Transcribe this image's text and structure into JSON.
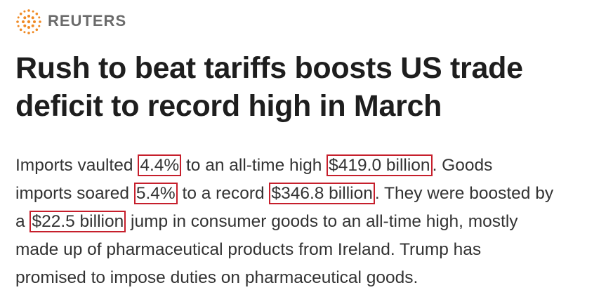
{
  "header": {
    "brand": "REUTERS"
  },
  "headline": [
    "Rush to beat tariffs boosts US trade",
    "deficit to record high in March"
  ],
  "body": {
    "lines": [
      [
        {
          "text": "Imports vaulted "
        },
        {
          "text": "4.4%",
          "highlighted": true
        },
        {
          "text": " to an all-time high "
        },
        {
          "text": "$419.0 billion",
          "highlighted": true
        },
        {
          "text": ". Goods"
        }
      ],
      [
        {
          "text": "imports soared "
        },
        {
          "text": "5.4%",
          "highlighted": true
        },
        {
          "text": " to a record "
        },
        {
          "text": "$346.8 billion",
          "highlighted": true
        },
        {
          "text": ". They were boosted by"
        }
      ],
      [
        {
          "text": "a "
        },
        {
          "text": "$22.5 billion",
          "highlighted": true
        },
        {
          "text": " jump in consumer goods to an all-time high, mostly"
        }
      ],
      [
        {
          "text": "made up of pharmaceutical products from Ireland. Trump has"
        }
      ],
      [
        {
          "text": "promised to impose duties on pharmaceutical goods."
        }
      ]
    ]
  }
}
